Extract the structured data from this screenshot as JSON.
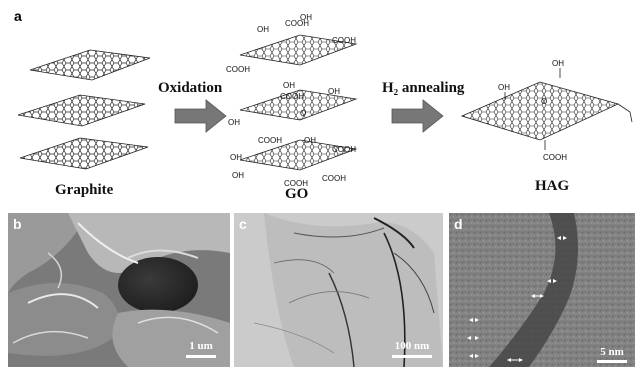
{
  "figure": {
    "panel_a": {
      "letter": "a",
      "stages": [
        {
          "label": "Graphite"
        },
        {
          "label": "GO"
        },
        {
          "label": "HAG"
        }
      ],
      "steps": [
        {
          "label": "Oxidation"
        },
        {
          "label": "H₂ annealing"
        }
      ],
      "go_groups": [
        "OH",
        "COOH",
        "COOH",
        "COOH",
        "OH",
        "OH",
        "COOH",
        "OH",
        "O",
        "OH",
        "COOH",
        "OH",
        "OH",
        "COOH",
        "COOH",
        "OH",
        "COOH"
      ],
      "hag_groups": {
        "oh1": "OH",
        "oh2": "OH",
        "o": "O",
        "cooh": "COOH"
      }
    },
    "panels": [
      {
        "letter": "b",
        "scale": "1 um"
      },
      {
        "letter": "c",
        "scale": "100 nm"
      },
      {
        "letter": "d",
        "scale": "5 nm"
      }
    ]
  }
}
